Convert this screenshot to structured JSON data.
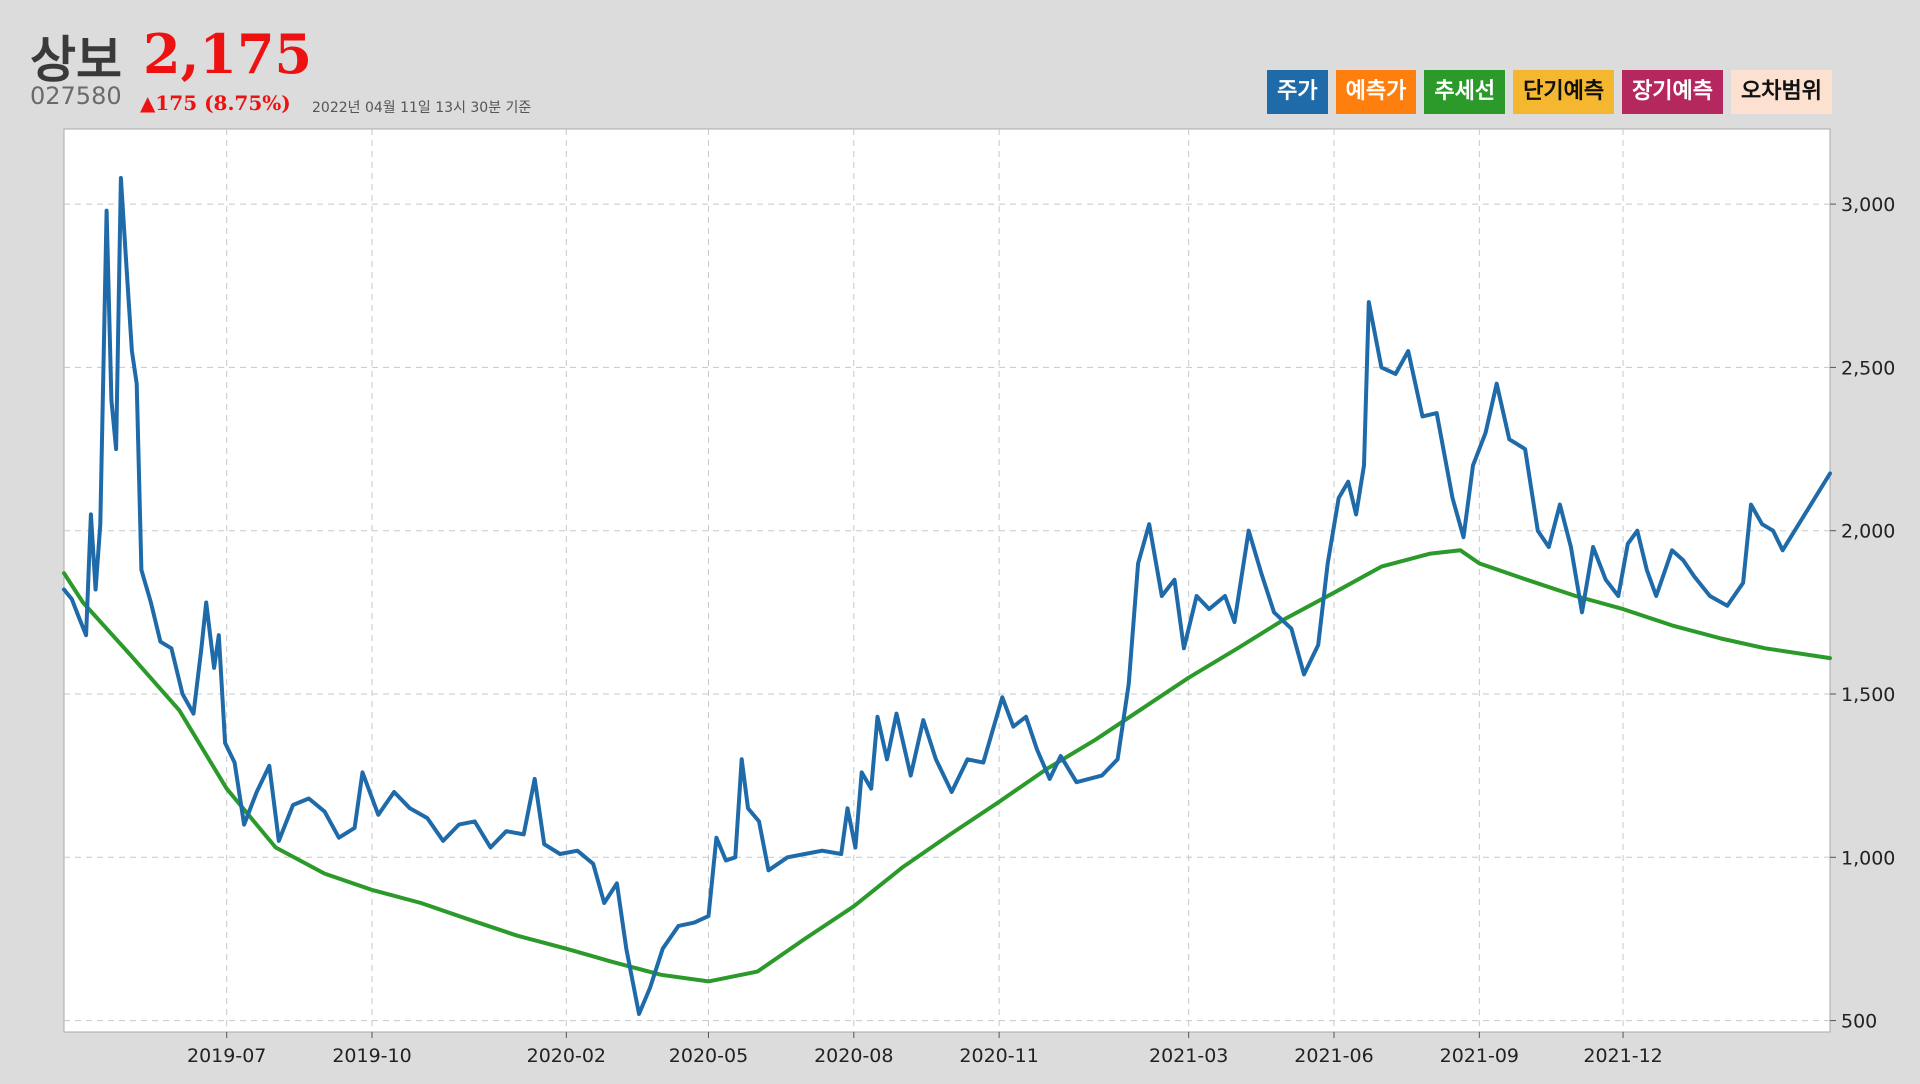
{
  "header": {
    "name": "상보",
    "price": "2,175",
    "code": "027580",
    "change": "▲175 (8.75%)",
    "time": "2022년 04월 11일 13시 30분 기준"
  },
  "legend": [
    {
      "label": "주가",
      "color": "#1f6aa9",
      "text_color": "#ffffff"
    },
    {
      "label": "예측가",
      "color": "#ff7f0e",
      "text_color": "#ffffff"
    },
    {
      "label": "추세선",
      "color": "#2b9a2b",
      "text_color": "#ffffff"
    },
    {
      "label": "단기예측",
      "color": "#f5b730",
      "text_color": "#111111"
    },
    {
      "label": "장기예측",
      "color": "#b5275f",
      "text_color": "#ffffff"
    },
    {
      "label": "오차범위",
      "color": "#fce0d0",
      "text_color": "#111111"
    }
  ],
  "chart_data": {
    "type": "line",
    "x_tick_labels": [
      "2019-07",
      "2019-10",
      "2020-02",
      "2020-05",
      "2020-08",
      "2020-11",
      "2021-03",
      "2021-06",
      "2021-09",
      "2021-12"
    ],
    "x_ticks": [
      "2019-07-01",
      "2019-10-01",
      "2020-02-01",
      "2020-05-01",
      "2020-08-01",
      "2020-11-01",
      "2021-03-01",
      "2021-06-01",
      "2021-09-01",
      "2021-12-01"
    ],
    "x_range": [
      "2019-03-20",
      "2022-04-11"
    ],
    "y_tick_labels": [
      "500",
      "1,000",
      "1,500",
      "2,000",
      "2,500",
      "3,000"
    ],
    "y_ticks": [
      500,
      1000,
      1500,
      2000,
      2500,
      3000
    ],
    "ylim": [
      465,
      3230
    ],
    "y_axis_position": "right",
    "grid": true,
    "series": [
      {
        "name": "주가",
        "color": "#1f6aa9",
        "points": [
          [
            "2019-03-20",
            1820
          ],
          [
            "2019-03-25",
            1790
          ],
          [
            "2019-03-29",
            1740
          ],
          [
            "2019-04-03",
            1680
          ],
          [
            "2019-04-06",
            2050
          ],
          [
            "2019-04-09",
            1820
          ],
          [
            "2019-04-12",
            2020
          ],
          [
            "2019-04-16",
            2980
          ],
          [
            "2019-04-19",
            2400
          ],
          [
            "2019-04-22",
            2250
          ],
          [
            "2019-04-25",
            3080
          ],
          [
            "2019-04-28",
            2850
          ],
          [
            "2019-05-02",
            2550
          ],
          [
            "2019-05-05",
            2450
          ],
          [
            "2019-05-08",
            1880
          ],
          [
            "2019-05-14",
            1780
          ],
          [
            "2019-05-20",
            1660
          ],
          [
            "2019-05-27",
            1640
          ],
          [
            "2019-06-03",
            1500
          ],
          [
            "2019-06-10",
            1440
          ],
          [
            "2019-06-15",
            1640
          ],
          [
            "2019-06-18",
            1780
          ],
          [
            "2019-06-23",
            1580
          ],
          [
            "2019-06-26",
            1680
          ],
          [
            "2019-06-30",
            1350
          ],
          [
            "2019-07-06",
            1290
          ],
          [
            "2019-07-12",
            1100
          ],
          [
            "2019-07-20",
            1200
          ],
          [
            "2019-07-28",
            1280
          ],
          [
            "2019-08-03",
            1050
          ],
          [
            "2019-08-12",
            1160
          ],
          [
            "2019-08-22",
            1180
          ],
          [
            "2019-09-01",
            1140
          ],
          [
            "2019-09-10",
            1060
          ],
          [
            "2019-09-20",
            1090
          ],
          [
            "2019-09-25",
            1260
          ],
          [
            "2019-10-05",
            1130
          ],
          [
            "2019-10-15",
            1200
          ],
          [
            "2019-10-25",
            1150
          ],
          [
            "2019-11-05",
            1120
          ],
          [
            "2019-11-15",
            1050
          ],
          [
            "2019-11-25",
            1100
          ],
          [
            "2019-12-05",
            1110
          ],
          [
            "2019-12-15",
            1030
          ],
          [
            "2019-12-25",
            1080
          ],
          [
            "2020-01-05",
            1070
          ],
          [
            "2020-01-12",
            1240
          ],
          [
            "2020-01-18",
            1040
          ],
          [
            "2020-01-28",
            1010
          ],
          [
            "2020-02-08",
            1020
          ],
          [
            "2020-02-18",
            980
          ],
          [
            "2020-02-25",
            860
          ],
          [
            "2020-03-04",
            920
          ],
          [
            "2020-03-10",
            720
          ],
          [
            "2020-03-18",
            520
          ],
          [
            "2020-03-25",
            600
          ],
          [
            "2020-04-02",
            720
          ],
          [
            "2020-04-12",
            790
          ],
          [
            "2020-04-22",
            800
          ],
          [
            "2020-05-01",
            820
          ],
          [
            "2020-05-06",
            1060
          ],
          [
            "2020-05-12",
            990
          ],
          [
            "2020-05-18",
            1000
          ],
          [
            "2020-05-22",
            1300
          ],
          [
            "2020-05-26",
            1150
          ],
          [
            "2020-06-02",
            1110
          ],
          [
            "2020-06-08",
            960
          ],
          [
            "2020-06-20",
            1000
          ],
          [
            "2020-07-01",
            1010
          ],
          [
            "2020-07-12",
            1020
          ],
          [
            "2020-07-24",
            1010
          ],
          [
            "2020-07-28",
            1150
          ],
          [
            "2020-08-02",
            1030
          ],
          [
            "2020-08-06",
            1260
          ],
          [
            "2020-08-12",
            1210
          ],
          [
            "2020-08-16",
            1430
          ],
          [
            "2020-08-22",
            1300
          ],
          [
            "2020-08-28",
            1440
          ],
          [
            "2020-09-06",
            1250
          ],
          [
            "2020-09-14",
            1420
          ],
          [
            "2020-09-22",
            1300
          ],
          [
            "2020-10-02",
            1200
          ],
          [
            "2020-10-12",
            1300
          ],
          [
            "2020-10-22",
            1290
          ],
          [
            "2020-11-03",
            1490
          ],
          [
            "2020-11-10",
            1400
          ],
          [
            "2020-11-18",
            1430
          ],
          [
            "2020-11-25",
            1330
          ],
          [
            "2020-12-03",
            1240
          ],
          [
            "2020-12-10",
            1310
          ],
          [
            "2020-12-20",
            1230
          ],
          [
            "2021-01-05",
            1250
          ],
          [
            "2021-01-15",
            1300
          ],
          [
            "2021-01-22",
            1530
          ],
          [
            "2021-01-28",
            1900
          ],
          [
            "2021-02-04",
            2020
          ],
          [
            "2021-02-12",
            1800
          ],
          [
            "2021-02-20",
            1850
          ],
          [
            "2021-02-26",
            1640
          ],
          [
            "2021-03-06",
            1800
          ],
          [
            "2021-03-14",
            1760
          ],
          [
            "2021-03-24",
            1800
          ],
          [
            "2021-03-30",
            1720
          ],
          [
            "2021-04-08",
            2000
          ],
          [
            "2021-04-16",
            1870
          ],
          [
            "2021-04-24",
            1750
          ],
          [
            "2021-05-05",
            1700
          ],
          [
            "2021-05-13",
            1560
          ],
          [
            "2021-05-22",
            1650
          ],
          [
            "2021-05-28",
            1900
          ],
          [
            "2021-06-04",
            2100
          ],
          [
            "2021-06-10",
            2150
          ],
          [
            "2021-06-15",
            2050
          ],
          [
            "2021-06-20",
            2200
          ],
          [
            "2021-06-23",
            2700
          ],
          [
            "2021-07-01",
            2500
          ],
          [
            "2021-07-10",
            2480
          ],
          [
            "2021-07-18",
            2550
          ],
          [
            "2021-07-27",
            2350
          ],
          [
            "2021-08-05",
            2360
          ],
          [
            "2021-08-15",
            2100
          ],
          [
            "2021-08-22",
            1980
          ],
          [
            "2021-08-28",
            2200
          ],
          [
            "2021-09-05",
            2300
          ],
          [
            "2021-09-12",
            2450
          ],
          [
            "2021-09-20",
            2280
          ],
          [
            "2021-09-30",
            2250
          ],
          [
            "2021-10-08",
            2000
          ],
          [
            "2021-10-15",
            1950
          ],
          [
            "2021-10-22",
            2080
          ],
          [
            "2021-10-29",
            1950
          ],
          [
            "2021-11-05",
            1750
          ],
          [
            "2021-11-12",
            1950
          ],
          [
            "2021-11-20",
            1850
          ],
          [
            "2021-11-28",
            1800
          ],
          [
            "2021-12-04",
            1960
          ],
          [
            "2021-12-10",
            2000
          ],
          [
            "2021-12-16",
            1880
          ],
          [
            "2021-12-22",
            1800
          ],
          [
            "2022-01-01",
            1940
          ],
          [
            "2022-01-08",
            1910
          ],
          [
            "2022-01-15",
            1860
          ],
          [
            "2022-01-25",
            1800
          ],
          [
            "2022-02-05",
            1770
          ],
          [
            "2022-02-15",
            1840
          ],
          [
            "2022-02-20",
            2080
          ],
          [
            "2022-02-27",
            2020
          ],
          [
            "2022-03-06",
            2000
          ],
          [
            "2022-03-12",
            1940
          ],
          [
            "2022-04-11",
            2175
          ]
        ]
      },
      {
        "name": "추세선",
        "color": "#2b9a2b",
        "points": [
          [
            "2019-03-20",
            1870
          ],
          [
            "2019-04-01",
            1780
          ],
          [
            "2019-05-01",
            1620
          ],
          [
            "2019-06-01",
            1450
          ],
          [
            "2019-07-01",
            1210
          ],
          [
            "2019-08-01",
            1030
          ],
          [
            "2019-09-01",
            950
          ],
          [
            "2019-10-01",
            900
          ],
          [
            "2019-11-01",
            860
          ],
          [
            "2019-12-01",
            810
          ],
          [
            "2020-01-01",
            760
          ],
          [
            "2020-02-01",
            720
          ],
          [
            "2020-03-01",
            680
          ],
          [
            "2020-04-01",
            640
          ],
          [
            "2020-05-01",
            620
          ],
          [
            "2020-06-01",
            650
          ],
          [
            "2020-07-01",
            750
          ],
          [
            "2020-08-01",
            850
          ],
          [
            "2020-09-01",
            970
          ],
          [
            "2020-10-01",
            1070
          ],
          [
            "2020-11-01",
            1170
          ],
          [
            "2020-12-01",
            1270
          ],
          [
            "2021-01-01",
            1360
          ],
          [
            "2021-02-01",
            1460
          ],
          [
            "2021-03-01",
            1550
          ],
          [
            "2021-04-01",
            1640
          ],
          [
            "2021-05-01",
            1730
          ],
          [
            "2021-06-01",
            1810
          ],
          [
            "2021-07-01",
            1890
          ],
          [
            "2021-08-01",
            1930
          ],
          [
            "2021-08-20",
            1940
          ],
          [
            "2021-09-01",
            1900
          ],
          [
            "2021-10-01",
            1850
          ],
          [
            "2021-11-01",
            1800
          ],
          [
            "2021-12-01",
            1760
          ],
          [
            "2022-01-01",
            1710
          ],
          [
            "2022-02-01",
            1670
          ],
          [
            "2022-03-01",
            1640
          ],
          [
            "2022-04-11",
            1610
          ]
        ]
      }
    ]
  }
}
